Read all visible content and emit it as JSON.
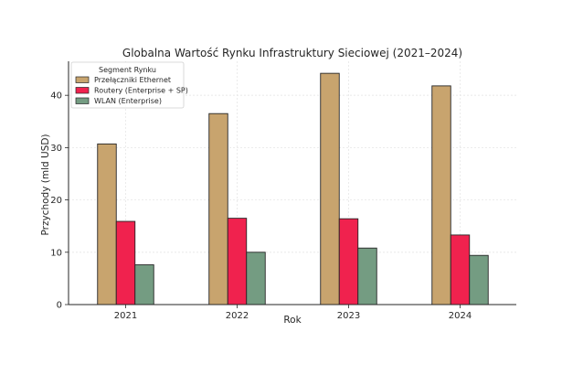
{
  "chart_data": {
    "type": "bar",
    "title": "Globalna Wartość Rynku Infrastruktury Sieciowej (2021–2024)",
    "xlabel": "Rok",
    "ylabel": "Przychody (mld USD)",
    "categories": [
      "2021",
      "2022",
      "2023",
      "2024"
    ],
    "series": [
      {
        "name": "Przełączniki Ethernet",
        "values": [
          30.7,
          36.5,
          44.2,
          41.8
        ]
      },
      {
        "name": "Routery (Enterprise + SP)",
        "values": [
          15.9,
          16.5,
          16.4,
          13.3
        ]
      },
      {
        "name": "WLAN (Enterprise)",
        "values": [
          7.6,
          10.0,
          10.8,
          9.4
        ]
      }
    ],
    "ylim": [
      0,
      46.5
    ],
    "yticks": [
      0,
      10,
      20,
      30,
      40
    ],
    "grid": true,
    "legend": {
      "title": "Segment Rynku",
      "position": "top-left"
    },
    "colors": [
      "#c8a46e",
      "#f0224e",
      "#749c82"
    ]
  }
}
